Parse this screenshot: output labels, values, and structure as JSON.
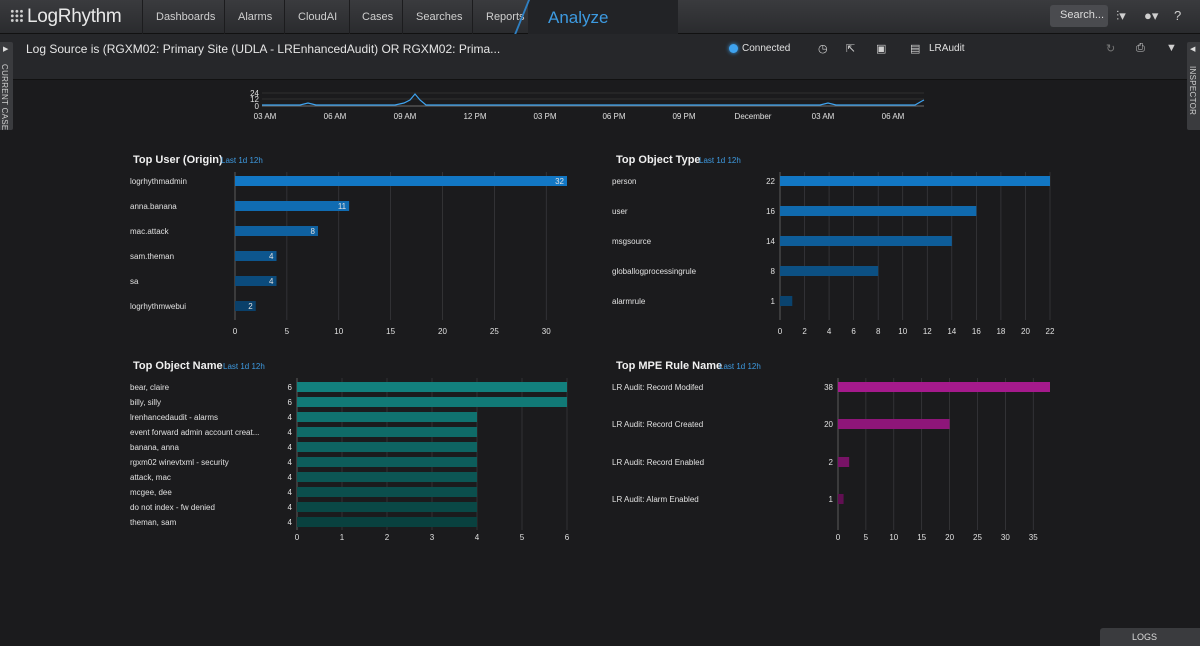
{
  "nav": {
    "logo": "LogRhythm",
    "items": [
      "Dashboards",
      "Alarms",
      "CloudAI",
      "Cases",
      "Searches",
      "Reports"
    ],
    "active": "Analyze",
    "search_label": "Search..."
  },
  "header": {
    "title": "Log Source is (RGXM02: Primary Site (UDLA - LREnhancedAudit) OR RGXM02: Prima...",
    "status": "Connected",
    "profile_label": "LRAudit"
  },
  "side": {
    "left_label": "CURRENT CASE",
    "right_label": "INSPECTOR"
  },
  "footer": {
    "logs_label": "LOGS"
  },
  "colors": {
    "accent": "#3d9ae0",
    "blue_bar": "#1277c4",
    "teal_bar": "#12807d",
    "magenta_bar": "#a51a8c"
  },
  "timeline": {
    "y_ticks": [
      "24",
      "12",
      "0"
    ],
    "x_ticks": [
      "03 AM",
      "06 AM",
      "09 AM",
      "12 PM",
      "03 PM",
      "06 PM",
      "09 PM",
      "December",
      "03 AM",
      "06 AM"
    ]
  },
  "panels": {
    "top_user": {
      "title": "Top User (Origin)",
      "subtitle": "Last 1d 12h"
    },
    "top_object_type": {
      "title": "Top Object Type",
      "subtitle": "Last 1d 12h"
    },
    "top_object_name": {
      "title": "Top Object Name",
      "subtitle": "Last 1d 12h"
    },
    "top_mpe": {
      "title": "Top MPE Rule Name",
      "subtitle": "Last 1d 12h"
    }
  },
  "chart_data": [
    {
      "type": "bar",
      "id": "top_user",
      "categories": [
        "logrhythmadmin",
        "anna.banana",
        "mac.attack",
        "sam.theman",
        "sa",
        "logrhythmwebui"
      ],
      "values": [
        32,
        11,
        8,
        4,
        4,
        2
      ],
      "xlim": [
        0,
        32
      ],
      "x_ticks": [
        0,
        5,
        10,
        15,
        20,
        25,
        30
      ]
    },
    {
      "type": "bar",
      "id": "top_object_type",
      "categories": [
        "person",
        "user",
        "msgsource",
        "globallogprocessingrule",
        "alarmrule"
      ],
      "values": [
        22,
        16,
        14,
        8,
        1
      ],
      "xlim": [
        0,
        22
      ],
      "x_ticks": [
        0,
        2,
        4,
        6,
        8,
        10,
        12,
        14,
        16,
        18,
        20,
        22
      ]
    },
    {
      "type": "bar",
      "id": "top_object_name",
      "categories": [
        "bear, claire",
        "billy, silly",
        "lrenhancedaudit - alarms",
        "event forward admin account creat...",
        "banana, anna",
        "rgxm02 winevtxml - security",
        "attack, mac",
        "mcgee, dee",
        "do not index - fw denied",
        "theman, sam"
      ],
      "values": [
        6,
        6,
        4,
        4,
        4,
        4,
        4,
        4,
        4,
        4
      ],
      "xlim": [
        0,
        6
      ],
      "x_ticks": [
        0,
        1,
        2,
        3,
        4,
        5,
        6
      ]
    },
    {
      "type": "bar",
      "id": "top_mpe",
      "categories": [
        "LR Audit: Record Modifed",
        "LR Audit: Record Created",
        "LR Audit: Record Enabled",
        "LR Audit: Alarm Enabled"
      ],
      "values": [
        38,
        20,
        2,
        1
      ],
      "xlim": [
        0,
        38
      ],
      "x_ticks": [
        0,
        5,
        10,
        15,
        20,
        25,
        30,
        35
      ]
    }
  ]
}
